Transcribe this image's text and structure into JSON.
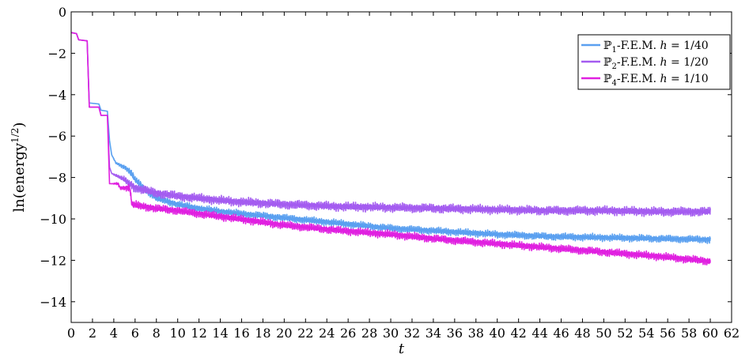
{
  "chart_data": {
    "type": "line",
    "xlabel": "t",
    "ylabel": "ln(energy^1/2)",
    "xlim": [
      0,
      62
    ],
    "ylim": [
      -15,
      0
    ],
    "xticks": [
      0,
      2,
      4,
      6,
      8,
      10,
      12,
      14,
      16,
      18,
      20,
      22,
      24,
      26,
      28,
      30,
      32,
      34,
      36,
      38,
      40,
      42,
      44,
      46,
      48,
      50,
      52,
      54,
      56,
      58,
      60,
      62
    ],
    "yticks": [
      0,
      -2,
      -4,
      -6,
      -8,
      -10,
      -12,
      -14
    ],
    "grid": false,
    "legend_position": "top-right",
    "series": [
      {
        "name": "ℙ1-F.E.M. h = 1/40",
        "legend_parts": {
          "base": "ℙ",
          "sub": "1",
          "rest": "-F.E.M. ",
          "var": "h",
          "eq": " = 1/40"
        },
        "color": "#5aa0f0",
        "x": [
          0,
          0.5,
          0.7,
          1.5,
          1.7,
          2.6,
          2.8,
          3.4,
          3.6,
          3.8,
          4.2,
          5.0,
          5.5,
          6,
          7,
          8,
          10,
          12,
          15,
          20,
          25,
          30,
          35,
          40,
          45,
          50,
          55,
          60
        ],
        "y": [
          -1.0,
          -1.05,
          -1.35,
          -1.4,
          -4.4,
          -4.45,
          -4.75,
          -4.8,
          -6.2,
          -6.9,
          -7.3,
          -7.5,
          -7.7,
          -8.1,
          -8.6,
          -9.0,
          -9.3,
          -9.5,
          -9.7,
          -9.95,
          -10.2,
          -10.45,
          -10.6,
          -10.75,
          -10.85,
          -10.9,
          -10.95,
          -11.0
        ],
        "noise_amplitude": 0.2
      },
      {
        "name": "ℙ2-F.E.M. h = 1/20",
        "legend_parts": {
          "base": "ℙ",
          "sub": "2",
          "rest": "-F.E.M. ",
          "var": "h",
          "eq": " = 1/20"
        },
        "color": "#a45cf0",
        "x": [
          0,
          0.5,
          0.7,
          1.5,
          1.7,
          2.6,
          2.8,
          3.4,
          3.6,
          3.8,
          4.2,
          5.0,
          6,
          8,
          10,
          12,
          15,
          20,
          25,
          30,
          35,
          40,
          45,
          50,
          55,
          60
        ],
        "y": [
          -1.0,
          -1.05,
          -1.35,
          -1.4,
          -4.6,
          -4.6,
          -5.0,
          -5.0,
          -7.5,
          -7.8,
          -7.9,
          -8.1,
          -8.5,
          -8.75,
          -8.9,
          -9.0,
          -9.15,
          -9.3,
          -9.4,
          -9.45,
          -9.5,
          -9.55,
          -9.6,
          -9.6,
          -9.65,
          -9.65
        ],
        "noise_amplitude": 0.25
      },
      {
        "name": "ℙ4-F.E.M. h = 1/10",
        "legend_parts": {
          "base": "ℙ",
          "sub": "4",
          "rest": "-F.E.M. ",
          "var": "h",
          "eq": " = 1/10"
        },
        "color": "#e020e0",
        "x": [
          0,
          0.5,
          0.7,
          1.5,
          1.7,
          2.6,
          2.8,
          3.4,
          3.6,
          4.4,
          4.6,
          5.5,
          5.7,
          8,
          10,
          12,
          15,
          20,
          25,
          30,
          35,
          40,
          45,
          50,
          55,
          60
        ],
        "y": [
          -1.0,
          -1.05,
          -1.35,
          -1.4,
          -4.6,
          -4.6,
          -5.0,
          -5.0,
          -8.3,
          -8.3,
          -8.5,
          -8.5,
          -9.3,
          -9.5,
          -9.6,
          -9.75,
          -9.95,
          -10.3,
          -10.55,
          -10.75,
          -11.0,
          -11.2,
          -11.4,
          -11.6,
          -11.8,
          -12.05
        ],
        "noise_amplitude": 0.22
      }
    ]
  }
}
